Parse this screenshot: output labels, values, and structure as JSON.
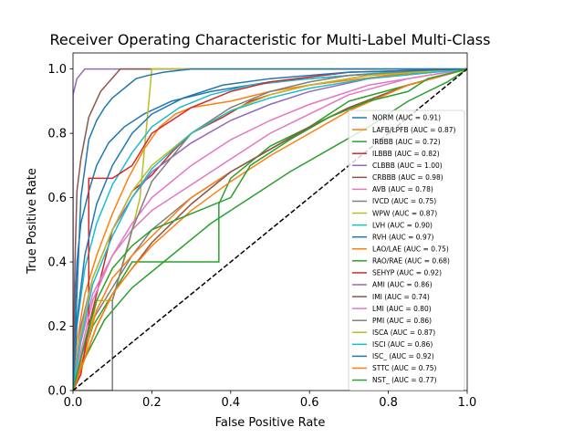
{
  "chart_data": {
    "type": "line",
    "title": "Receiver Operating Characteristic for Multi-Label Multi-Class",
    "xlabel": "False Positive Rate",
    "ylabel": "True Positive Rate",
    "xlim": [
      0.0,
      1.0
    ],
    "ylim": [
      0.0,
      1.05
    ],
    "x_ticks": [
      "0.0",
      "0.2",
      "0.4",
      "0.6",
      "0.8",
      "1.0"
    ],
    "y_ticks": [
      "0.0",
      "0.2",
      "0.4",
      "0.6",
      "0.8",
      "1.0"
    ],
    "grid": false,
    "legend_position": "center-right",
    "chance_line": {
      "x": [
        0,
        1
      ],
      "y": [
        0,
        1
      ],
      "style": "dashed",
      "color": "#000000"
    },
    "series": [
      {
        "name": "NORM (AUC = 0.91)",
        "color": "#1f77b4",
        "x": [
          0,
          0.005,
          0.01,
          0.02,
          0.04,
          0.06,
          0.09,
          0.13,
          0.18,
          0.25,
          0.35,
          0.5,
          0.7,
          0.85,
          1
        ],
        "y": [
          0,
          0.25,
          0.4,
          0.52,
          0.62,
          0.7,
          0.77,
          0.82,
          0.86,
          0.9,
          0.93,
          0.96,
          0.98,
          0.99,
          1
        ]
      },
      {
        "name": "LAFB/LPFB (AUC = 0.87)",
        "color": "#ff7f0e",
        "x": [
          0,
          0.01,
          0.03,
          0.06,
          0.1,
          0.14,
          0.18,
          0.22,
          0.26,
          0.3,
          0.4,
          0.5,
          0.6,
          0.8,
          1
        ],
        "y": [
          0,
          0.15,
          0.3,
          0.42,
          0.55,
          0.66,
          0.75,
          0.82,
          0.86,
          0.88,
          0.9,
          0.93,
          0.95,
          0.98,
          1
        ]
      },
      {
        "name": "IRBBB (AUC = 0.72)",
        "color": "#2ca02c",
        "x": [
          0,
          0.02,
          0.05,
          0.1,
          0.15,
          0.2,
          0.25,
          0.3,
          0.37,
          0.37,
          0.4,
          0.5,
          0.6,
          0.7,
          0.85,
          1
        ],
        "y": [
          0,
          0.08,
          0.2,
          0.3,
          0.4,
          0.4,
          0.4,
          0.4,
          0.4,
          0.58,
          0.66,
          0.76,
          0.82,
          0.9,
          0.95,
          1
        ]
      },
      {
        "name": "ILBBB (AUC = 0.82)",
        "color": "#d62728",
        "x": [
          0,
          0.02,
          0.05,
          0.08,
          0.1,
          0.15,
          0.2,
          0.25,
          0.3,
          0.38,
          0.45,
          0.5,
          0.6,
          0.75,
          1
        ],
        "y": [
          0,
          0.1,
          0.25,
          0.4,
          0.5,
          0.62,
          0.67,
          0.74,
          0.8,
          0.85,
          0.9,
          0.92,
          0.95,
          0.98,
          1
        ]
      },
      {
        "name": "CLBBB (AUC = 1.00)",
        "color": "#9467bd",
        "x": [
          0,
          0,
          0.01,
          0.03,
          1
        ],
        "y": [
          0,
          0.92,
          0.97,
          1,
          1
        ]
      },
      {
        "name": "CRBBB (AUC = 0.98)",
        "color": "#8c564b",
        "x": [
          0,
          0.005,
          0.01,
          0.02,
          0.04,
          0.07,
          0.12,
          1
        ],
        "y": [
          0,
          0.4,
          0.62,
          0.72,
          0.85,
          0.93,
          1,
          1
        ]
      },
      {
        "name": "AVB (AUC = 0.78)",
        "color": "#e377c2",
        "x": [
          0,
          0.02,
          0.05,
          0.1,
          0.15,
          0.2,
          0.3,
          0.4,
          0.5,
          0.6,
          0.7,
          0.85,
          1
        ],
        "y": [
          0,
          0.15,
          0.3,
          0.42,
          0.5,
          0.56,
          0.64,
          0.72,
          0.8,
          0.86,
          0.92,
          0.97,
          1
        ]
      },
      {
        "name": "IVCD (AUC = 0.75)",
        "color": "#7f7f7f",
        "x": [
          0,
          0.02,
          0.05,
          0.1,
          0.15,
          0.2,
          0.3,
          0.4,
          0.5,
          0.6,
          0.7,
          0.85,
          1
        ],
        "y": [
          0,
          0.1,
          0.22,
          0.32,
          0.42,
          0.5,
          0.6,
          0.68,
          0.75,
          0.82,
          0.88,
          0.95,
          1
        ]
      },
      {
        "name": "WPW (AUC = 0.87)",
        "color": "#bcbd22",
        "x": [
          0,
          0.03,
          0.06,
          0.1,
          0.14,
          0.17,
          0.2,
          1
        ],
        "y": [
          0,
          0.1,
          0.28,
          0.28,
          0.45,
          0.6,
          1,
          1
        ]
      },
      {
        "name": "LVH (AUC = 0.90)",
        "color": "#17becf",
        "x": [
          0,
          0.01,
          0.03,
          0.06,
          0.1,
          0.15,
          0.2,
          0.27,
          0.35,
          0.45,
          0.6,
          0.8,
          1
        ],
        "y": [
          0,
          0.2,
          0.38,
          0.52,
          0.64,
          0.74,
          0.82,
          0.88,
          0.92,
          0.95,
          0.97,
          0.99,
          1
        ]
      },
      {
        "name": "RVH (AUC = 0.97)",
        "color": "#1f77b4",
        "x": [
          0,
          0.02,
          0.04,
          0.06,
          0.08,
          0.1,
          0.12,
          0.14,
          0.16,
          0.19,
          0.23,
          0.3,
          1
        ],
        "y": [
          0,
          0.6,
          0.78,
          0.84,
          0.88,
          0.91,
          0.93,
          0.95,
          0.97,
          0.98,
          0.99,
          1,
          1
        ]
      },
      {
        "name": "LAO/LAE (AUC = 0.75)",
        "color": "#ff7f0e",
        "x": [
          0,
          0.03,
          0.06,
          0.1,
          0.15,
          0.2,
          0.25,
          0.3,
          0.4,
          0.5,
          0.6,
          0.7,
          0.85,
          1
        ],
        "y": [
          0,
          0.12,
          0.25,
          0.35,
          0.42,
          0.48,
          0.54,
          0.6,
          0.68,
          0.75,
          0.82,
          0.88,
          0.95,
          1
        ]
      },
      {
        "name": "RAO/RAE (AUC = 0.68)",
        "color": "#2ca02c",
        "x": [
          0,
          0.03,
          0.08,
          0.15,
          0.25,
          0.35,
          0.45,
          0.55,
          0.65,
          0.75,
          0.85,
          0.95,
          1
        ],
        "y": [
          0,
          0.1,
          0.22,
          0.32,
          0.42,
          0.52,
          0.6,
          0.68,
          0.75,
          0.82,
          0.9,
          0.96,
          1
        ]
      },
      {
        "name": "SEHYP (AUC = 0.92)",
        "color": "#d62728",
        "x": [
          0,
          0.02,
          0.04,
          0.04,
          0.1,
          0.15,
          0.2,
          0.3,
          0.4,
          0.5,
          0.7,
          1
        ],
        "y": [
          0,
          0.05,
          0.2,
          0.66,
          0.66,
          0.7,
          0.8,
          0.88,
          0.93,
          0.96,
          0.99,
          1
        ]
      },
      {
        "name": "AMI (AUC = 0.86)",
        "color": "#9467bd",
        "x": [
          0,
          0.02,
          0.05,
          0.1,
          0.15,
          0.2,
          0.3,
          0.4,
          0.5,
          0.6,
          0.75,
          1
        ],
        "y": [
          0,
          0.2,
          0.35,
          0.5,
          0.6,
          0.68,
          0.77,
          0.84,
          0.89,
          0.93,
          0.97,
          1
        ]
      },
      {
        "name": "IMI (AUC = 0.74)",
        "color": "#8c564b",
        "x": [
          0,
          0.03,
          0.06,
          0.1,
          0.15,
          0.2,
          0.3,
          0.4,
          0.5,
          0.6,
          0.7,
          0.85,
          1
        ],
        "y": [
          0,
          0.1,
          0.2,
          0.3,
          0.38,
          0.46,
          0.58,
          0.68,
          0.75,
          0.82,
          0.88,
          0.95,
          1
        ]
      },
      {
        "name": "LMI (AUC = 0.80)",
        "color": "#e377c2",
        "x": [
          0,
          0.02,
          0.05,
          0.1,
          0.15,
          0.2,
          0.3,
          0.4,
          0.5,
          0.6,
          0.75,
          1
        ],
        "y": [
          0,
          0.12,
          0.28,
          0.42,
          0.52,
          0.6,
          0.7,
          0.78,
          0.84,
          0.89,
          0.95,
          1
        ]
      },
      {
        "name": "PMI (AUC = 0.86)",
        "color": "#7f7f7f",
        "x": [
          0,
          0.1,
          0.1,
          0.15,
          0.2,
          0.3,
          0.4,
          0.5,
          0.6,
          0.7,
          0.85,
          1
        ],
        "y": [
          0,
          0,
          0.28,
          0.5,
          0.65,
          0.8,
          0.88,
          0.93,
          0.96,
          0.98,
          0.99,
          1
        ]
      },
      {
        "name": "ISCA (AUC = 0.87)",
        "color": "#bcbd22",
        "x": [
          0,
          0.02,
          0.05,
          0.1,
          0.15,
          0.2,
          0.3,
          0.4,
          0.5,
          0.6,
          0.75,
          1
        ],
        "y": [
          0,
          0.18,
          0.35,
          0.5,
          0.62,
          0.7,
          0.8,
          0.87,
          0.92,
          0.95,
          0.98,
          1
        ]
      },
      {
        "name": "ISCI (AUC = 0.86)",
        "color": "#17becf",
        "x": [
          0,
          0.02,
          0.05,
          0.1,
          0.15,
          0.2,
          0.3,
          0.4,
          0.5,
          0.6,
          0.75,
          1
        ],
        "y": [
          0,
          0.16,
          0.33,
          0.48,
          0.6,
          0.69,
          0.8,
          0.87,
          0.91,
          0.94,
          0.97,
          1
        ]
      },
      {
        "name": "ISC_ (AUC = 0.92)",
        "color": "#1f77b4",
        "x": [
          0,
          0.01,
          0.03,
          0.06,
          0.1,
          0.15,
          0.2,
          0.28,
          0.38,
          0.5,
          0.7,
          1
        ],
        "y": [
          0,
          0.22,
          0.42,
          0.58,
          0.7,
          0.8,
          0.86,
          0.91,
          0.95,
          0.97,
          0.99,
          1
        ]
      },
      {
        "name": "STTC (AUC = 0.75)",
        "color": "#ff7f0e",
        "x": [
          0,
          0.03,
          0.06,
          0.1,
          0.15,
          0.2,
          0.3,
          0.4,
          0.5,
          0.6,
          0.7,
          0.85,
          1
        ],
        "y": [
          0,
          0.1,
          0.2,
          0.3,
          0.38,
          0.45,
          0.56,
          0.65,
          0.73,
          0.8,
          0.87,
          0.95,
          1
        ]
      },
      {
        "name": "NST_ (AUC = 0.77)",
        "color": "#2ca02c",
        "x": [
          0,
          0.01,
          0.03,
          0.06,
          0.1,
          0.15,
          0.2,
          0.3,
          0.4,
          0.45,
          0.55,
          0.65,
          0.75,
          0.85,
          0.9,
          1
        ],
        "y": [
          0,
          0.05,
          0.15,
          0.28,
          0.38,
          0.45,
          0.5,
          0.55,
          0.6,
          0.7,
          0.78,
          0.85,
          0.9,
          0.93,
          0.97,
          1
        ]
      }
    ]
  }
}
